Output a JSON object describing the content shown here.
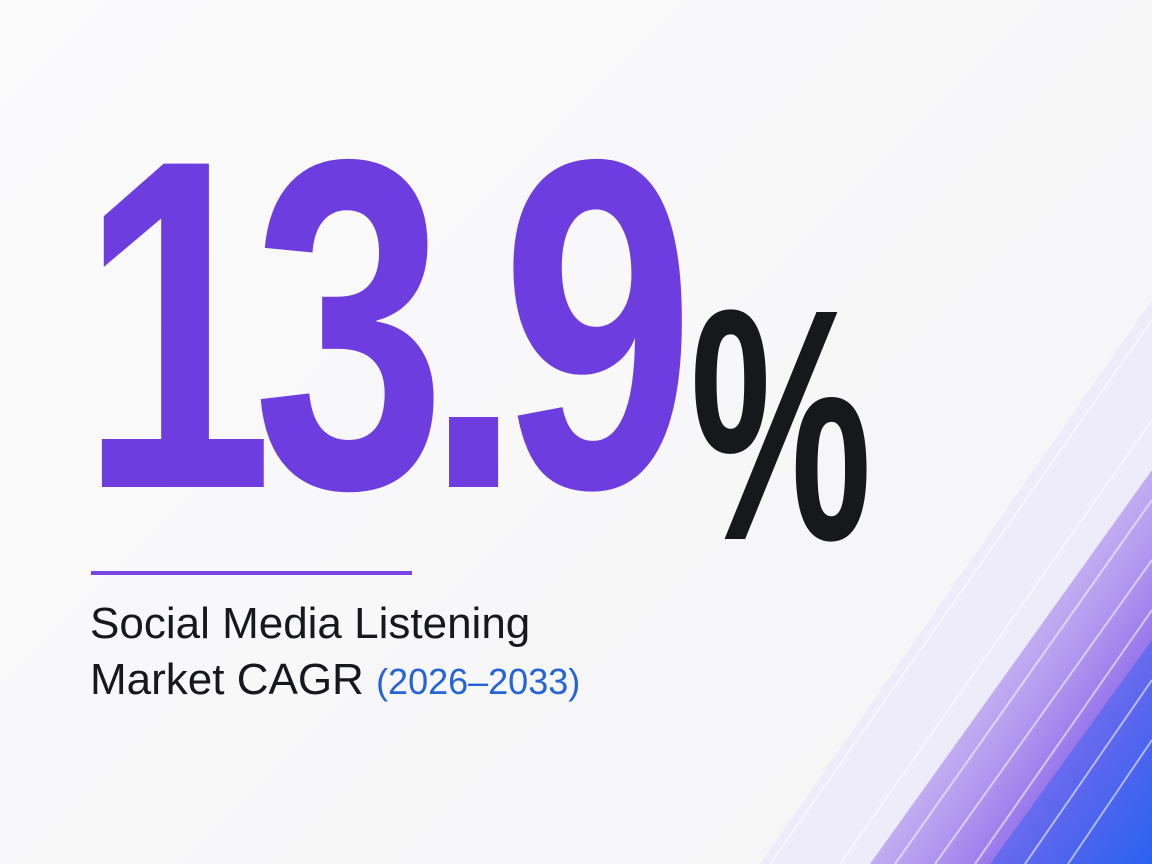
{
  "headline": {
    "value": "13.9",
    "unit": "%"
  },
  "caption": {
    "line1": "Social Media Listening",
    "line2": "Market CAGR",
    "period": "(2026–2033)"
  },
  "colors": {
    "value": "#6d3de0",
    "unit": "#17181c",
    "rule": "#7b45e6",
    "period": "#2563d9",
    "accent_gradient_start": "#b9a6f2",
    "accent_gradient_end": "#2f5ef0"
  }
}
